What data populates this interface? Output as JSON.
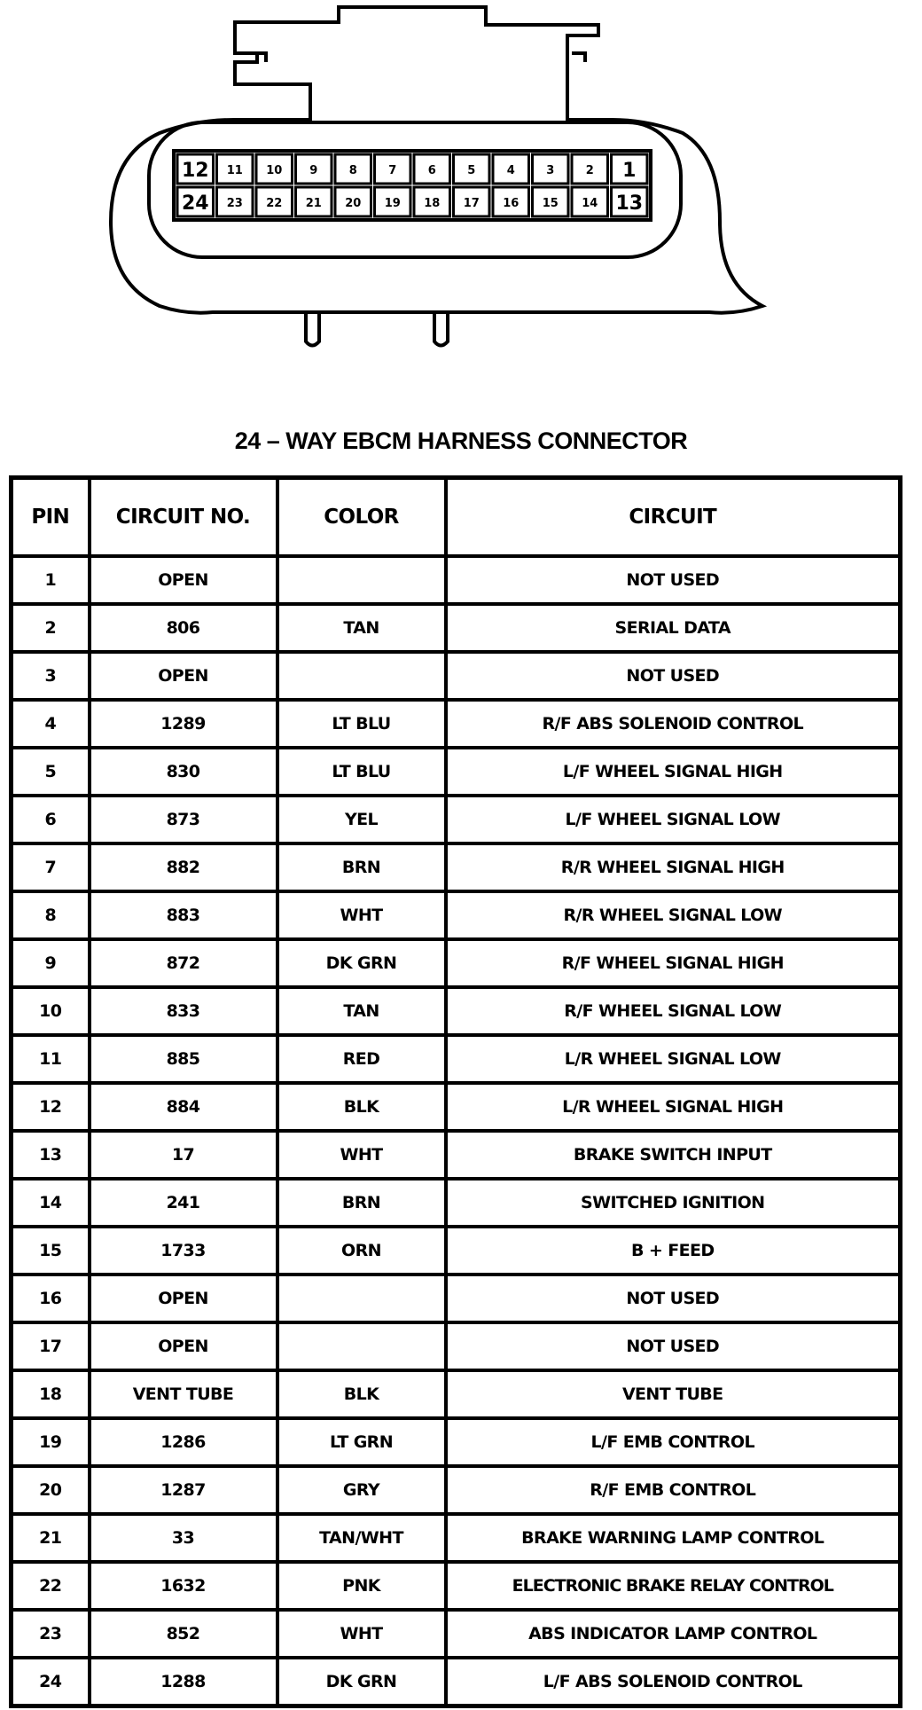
{
  "connector": {
    "top_row_pins": [
      "12",
      "11",
      "10",
      "9",
      "8",
      "7",
      "6",
      "5",
      "4",
      "3",
      "2",
      "1"
    ],
    "bottom_row_pins": [
      "24",
      "23",
      "22",
      "21",
      "20",
      "19",
      "18",
      "17",
      "16",
      "15",
      "14",
      "13"
    ]
  },
  "title": "24 – WAY EBCM HARNESS CONNECTOR",
  "table": {
    "headers": [
      "PIN",
      "CIRCUIT NO.",
      "COLOR",
      "CIRCUIT"
    ],
    "rows": [
      [
        "1",
        "OPEN",
        "",
        "NOT USED"
      ],
      [
        "2",
        "806",
        "TAN",
        "SERIAL DATA"
      ],
      [
        "3",
        "OPEN",
        "",
        "NOT USED"
      ],
      [
        "4",
        "1289",
        "LT BLU",
        "R/F ABS SOLENOID CONTROL"
      ],
      [
        "5",
        "830",
        "LT BLU",
        "L/F WHEEL SIGNAL HIGH"
      ],
      [
        "6",
        "873",
        "YEL",
        "L/F WHEEL SIGNAL LOW"
      ],
      [
        "7",
        "882",
        "BRN",
        "R/R WHEEL SIGNAL HIGH"
      ],
      [
        "8",
        "883",
        "WHT",
        "R/R WHEEL SIGNAL LOW"
      ],
      [
        "9",
        "872",
        "DK GRN",
        "R/F WHEEL SIGNAL HIGH"
      ],
      [
        "10",
        "833",
        "TAN",
        "R/F WHEEL SIGNAL LOW"
      ],
      [
        "11",
        "885",
        "RED",
        "L/R WHEEL SIGNAL LOW"
      ],
      [
        "12",
        "884",
        "BLK",
        "L/R WHEEL SIGNAL HIGH"
      ],
      [
        "13",
        "17",
        "WHT",
        "BRAKE SWITCH INPUT"
      ],
      [
        "14",
        "241",
        "BRN",
        "SWITCHED IGNITION"
      ],
      [
        "15",
        "1733",
        "ORN",
        "B + FEED"
      ],
      [
        "16",
        "OPEN",
        "",
        "NOT USED"
      ],
      [
        "17",
        "OPEN",
        "",
        "NOT USED"
      ],
      [
        "18",
        "VENT TUBE",
        "BLK",
        "VENT TUBE"
      ],
      [
        "19",
        "1286",
        "LT GRN",
        "L/F EMB CONTROL"
      ],
      [
        "20",
        "1287",
        "GRY",
        "R/F EMB CONTROL"
      ],
      [
        "21",
        "33",
        "TAN/WHT",
        "BRAKE WARNING LAMP CONTROL"
      ],
      [
        "22",
        "1632",
        "PNK",
        "ELECTRONIC BRAKE RELAY CONTROL"
      ],
      [
        "23",
        "852",
        "WHT",
        "ABS INDICATOR LAMP CONTROL"
      ],
      [
        "24",
        "1288",
        "DK GRN",
        "L/F ABS SOLENOID CONTROL"
      ]
    ]
  }
}
